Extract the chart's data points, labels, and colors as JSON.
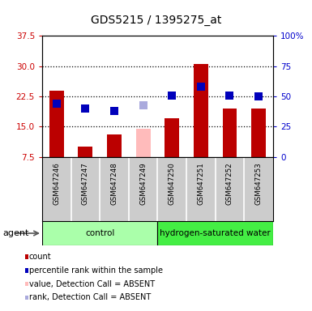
{
  "title": "GDS5215 / 1395275_at",
  "samples": [
    "GSM647246",
    "GSM647247",
    "GSM647248",
    "GSM647249",
    "GSM647250",
    "GSM647251",
    "GSM647252",
    "GSM647253"
  ],
  "count_values": [
    24.0,
    10.0,
    13.0,
    14.5,
    17.0,
    30.5,
    19.5,
    19.5
  ],
  "rank_values": [
    44.0,
    40.0,
    38.0,
    43.0,
    51.0,
    58.0,
    51.0,
    50.0
  ],
  "absent_mask": [
    false,
    false,
    false,
    true,
    false,
    false,
    false,
    false
  ],
  "bar_color_present": "#bb0000",
  "bar_color_absent": "#ffbbbb",
  "rank_color_present": "#0000bb",
  "rank_color_absent": "#aaaadd",
  "ylim_left": [
    7.5,
    37.5
  ],
  "ylim_right": [
    0,
    100
  ],
  "yticks_left": [
    7.5,
    15.0,
    22.5,
    30.0,
    37.5
  ],
  "yticks_right": [
    0,
    25,
    50,
    75,
    100
  ],
  "ytick_labels_right": [
    "0",
    "25",
    "50",
    "75",
    "100%"
  ],
  "groups": [
    {
      "label": "control",
      "indices": [
        0,
        1,
        2,
        3
      ],
      "color": "#aaffaa"
    },
    {
      "label": "hydrogen-saturated water",
      "indices": [
        4,
        5,
        6,
        7
      ],
      "color": "#44ee44"
    }
  ],
  "agent_label": "agent",
  "bar_width": 0.5,
  "marker_size": 7,
  "tick_area_bg": "#cccccc"
}
